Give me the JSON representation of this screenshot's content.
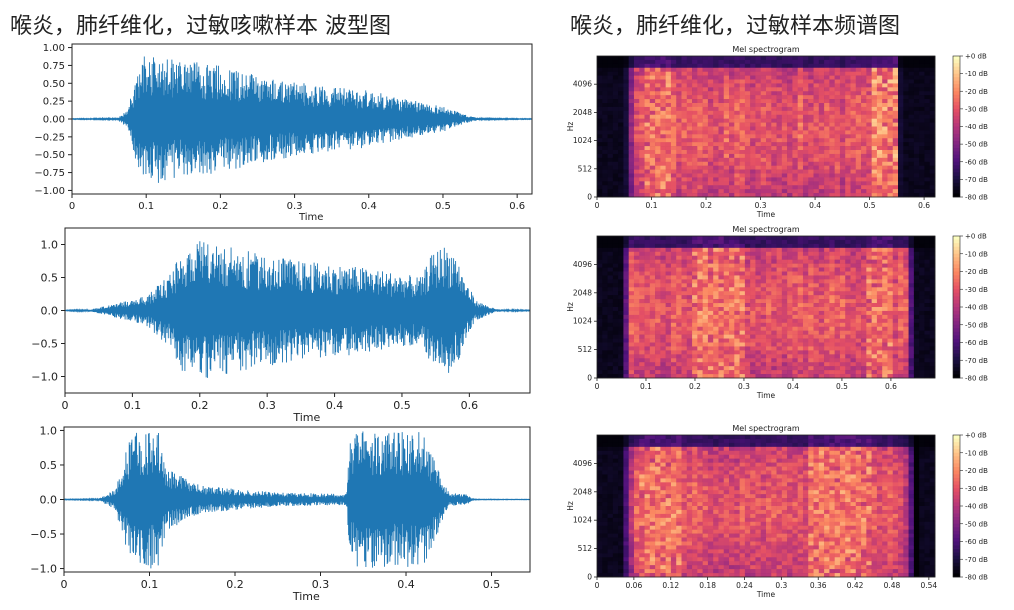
{
  "figure": {
    "left_title": "喉炎，肺纤维化，过敏咳嗽样本 波型图",
    "right_title": "喉炎，肺纤维化，过敏样本频谱图"
  },
  "colors": {
    "waveform": "#1f77b4",
    "background": "#ffffff",
    "spec_low": "#000004",
    "spec_high": "#fcfdbf"
  },
  "chart_data": [
    {
      "type": "line",
      "xlabel": "Time",
      "ylabel": "",
      "xlim": [
        0,
        0.62
      ],
      "ylim": [
        -1.05,
        1.05
      ],
      "x_ticks": [
        0,
        0.1,
        0.2,
        0.3,
        0.4,
        0.5,
        0.6
      ],
      "x_tick_labels": [
        "0",
        "0.1",
        "0.2",
        "0.3",
        "0.4",
        "0.5",
        "0.6"
      ],
      "y_ticks": [
        1.0,
        0.75,
        0.5,
        0.25,
        0.0,
        -0.25,
        -0.5,
        -0.75,
        -1.0
      ],
      "y_tick_labels": [
        "1.00",
        "0.75",
        "0.50",
        "0.25",
        "0.00",
        "−0.25",
        "−0.50",
        "−0.75",
        "−1.00"
      ],
      "envelope": {
        "t": [
          0,
          0.06,
          0.075,
          0.085,
          0.1,
          0.13,
          0.2,
          0.3,
          0.4,
          0.45,
          0.5,
          0.53,
          0.55,
          0.62
        ],
        "amplitude": [
          0.005,
          0.01,
          0.12,
          0.55,
          0.95,
          0.85,
          0.75,
          0.52,
          0.4,
          0.28,
          0.18,
          0.06,
          0.01,
          0.005
        ]
      }
    },
    {
      "type": "line",
      "xlabel": "Time",
      "ylabel": "",
      "xlim": [
        0,
        0.69
      ],
      "ylim": [
        -1.25,
        1.25
      ],
      "x_ticks": [
        0,
        0.1,
        0.2,
        0.3,
        0.4,
        0.5,
        0.6
      ],
      "x_tick_labels": [
        "0",
        "0.1",
        "0.2",
        "0.3",
        "0.4",
        "0.5",
        "0.6"
      ],
      "y_ticks": [
        1.0,
        0.5,
        0.0,
        -0.5,
        -1.0
      ],
      "y_tick_labels": [
        "1.0",
        "0.5",
        "0.0",
        "−0.5",
        "−1.0"
      ],
      "envelope": {
        "t": [
          0,
          0.04,
          0.08,
          0.12,
          0.16,
          0.17,
          0.2,
          0.25,
          0.35,
          0.45,
          0.53,
          0.54,
          0.56,
          0.58,
          0.59,
          0.61,
          0.64,
          0.69
        ],
        "amplitude": [
          0.005,
          0.02,
          0.12,
          0.22,
          0.6,
          0.9,
          1.05,
          0.95,
          0.75,
          0.65,
          0.5,
          0.8,
          1.0,
          0.9,
          0.55,
          0.15,
          0.02,
          0.005
        ]
      }
    },
    {
      "type": "line",
      "xlabel": "Time",
      "ylabel": "",
      "xlim": [
        0,
        0.545
      ],
      "ylim": [
        -1.05,
        1.05
      ],
      "x_ticks": [
        0,
        0.1,
        0.2,
        0.3,
        0.4,
        0.5
      ],
      "x_tick_labels": [
        "0",
        "0.1",
        "0.2",
        "0.3",
        "0.4",
        "0.5"
      ],
      "y_ticks": [
        1.0,
        0.5,
        0.0,
        -0.5,
        -1.0
      ],
      "y_tick_labels": [
        "1.0",
        "0.5",
        "0.0",
        "−0.5",
        "−1.0"
      ],
      "envelope": {
        "t": [
          0,
          0.04,
          0.06,
          0.07,
          0.08,
          0.11,
          0.12,
          0.16,
          0.25,
          0.33,
          0.335,
          0.345,
          0.42,
          0.44,
          0.45,
          0.47,
          0.48,
          0.545
        ],
        "amplitude": [
          0.005,
          0.01,
          0.15,
          0.6,
          1.0,
          1.0,
          0.45,
          0.2,
          0.1,
          0.08,
          0.9,
          1.0,
          1.0,
          0.4,
          0.1,
          0.08,
          0.005,
          0.003
        ]
      }
    },
    {
      "type": "heatmap",
      "title": "Mel spectrogram",
      "xlabel": "Time",
      "ylabel": "Hz",
      "xlim": [
        0,
        0.62
      ],
      "x_ticks": [
        0,
        0.1,
        0.2,
        0.3,
        0.4,
        0.5,
        0.6
      ],
      "x_tick_labels": [
        "0",
        "0.1",
        "0.2",
        "0.3",
        "0.4",
        "0.5",
        "0.6"
      ],
      "y_tick_labels": [
        "0",
        "512",
        "1024",
        "2048",
        "4096"
      ],
      "colorbar_labels": [
        "+0 dB",
        "-10 dB",
        "-20 dB",
        "-30 dB",
        "-40 dB",
        "-50 dB",
        "-60 dB",
        "-70 dB",
        "-80 dB"
      ],
      "active_range": [
        0.05,
        0.56
      ],
      "energy_bands": [
        {
          "t0": 0.09,
          "t1": 0.14,
          "level": 0.85
        },
        {
          "t0": 0.5,
          "t1": 0.55,
          "f": "low",
          "level": 0.9
        }
      ]
    },
    {
      "type": "heatmap",
      "title": "Mel spectrogram",
      "xlabel": "Time",
      "ylabel": "Hz",
      "xlim": [
        0,
        0.69
      ],
      "x_ticks": [
        0,
        0.1,
        0.2,
        0.3,
        0.4,
        0.5,
        0.6
      ],
      "x_tick_labels": [
        "0",
        "0.1",
        "0.2",
        "0.3",
        "0.4",
        "0.5",
        "0.6"
      ],
      "y_tick_labels": [
        "0",
        "512",
        "1024",
        "2048",
        "4096"
      ],
      "colorbar_labels": [
        "+0 dB",
        "-10 dB",
        "-20 dB",
        "-30 dB",
        "-40 dB",
        "-50 dB",
        "-60 dB",
        "-70 dB",
        "-80 dB"
      ],
      "active_range": [
        0.05,
        0.65
      ],
      "energy_bands": [
        {
          "t0": 0.19,
          "t1": 0.3,
          "level": 0.85
        },
        {
          "t0": 0.55,
          "t1": 0.6,
          "level": 0.85
        }
      ]
    },
    {
      "type": "heatmap",
      "title": "Mel spectrogram",
      "xlabel": "Time",
      "ylabel": "Hz",
      "xlim": [
        0,
        0.55
      ],
      "x_ticks": [
        0,
        0.06,
        0.12,
        0.18,
        0.24,
        0.3,
        0.36,
        0.42,
        0.48,
        0.54
      ],
      "x_tick_labels": [
        "0",
        "0.06",
        "0.12",
        "0.18",
        "0.24",
        "0.3",
        "0.36",
        "0.42",
        "0.48",
        "0.54"
      ],
      "y_tick_labels": [
        "0",
        "512",
        "1024",
        "2048",
        "4096"
      ],
      "colorbar_labels": [
        "+0 dB",
        "-10 dB",
        "-20 dB",
        "-30 dB",
        "-40 dB",
        "-50 dB",
        "-60 dB",
        "-70 dB",
        "-80 dB"
      ],
      "active_range": [
        0.04,
        0.52
      ],
      "energy_bands": [
        {
          "t0": 0.07,
          "t1": 0.14,
          "level": 0.85
        },
        {
          "t0": 0.34,
          "t1": 0.45,
          "level": 0.85
        }
      ]
    }
  ]
}
